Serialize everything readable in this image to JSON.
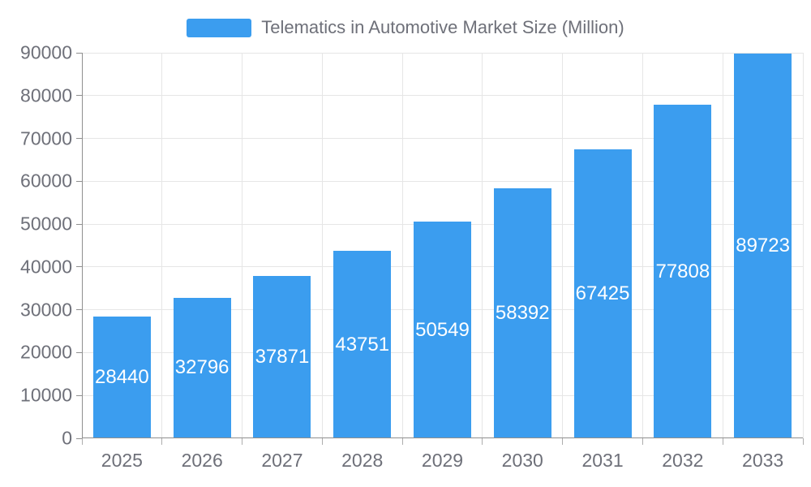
{
  "legend": {
    "label": "Telematics in Automotive Market Size (Million)"
  },
  "chart_data": {
    "type": "bar",
    "title": "Telematics in Automotive Market Size (Million)",
    "categories": [
      "2025",
      "2026",
      "2027",
      "2028",
      "2029",
      "2030",
      "2031",
      "2032",
      "2033"
    ],
    "series": [
      {
        "name": "Telematics in Automotive Market Size (Million)",
        "values": [
          28440,
          32796,
          37871,
          43751,
          50549,
          58392,
          67425,
          77808,
          89723
        ]
      }
    ],
    "xlabel": "",
    "ylabel": "",
    "ylim": [
      0,
      90000
    ],
    "yticks": [
      0,
      10000,
      20000,
      30000,
      40000,
      50000,
      60000,
      70000,
      80000,
      90000
    ],
    "grid": true,
    "legend_position": "top-center",
    "value_label_position": "inside-center",
    "colors": {
      "bar": "#3B9DEF",
      "value_label": "#FFFFFF",
      "grid": "#E6E6E6",
      "axis": "#8F8F8F",
      "text": "#6E7079",
      "background": "#FFFFFF"
    }
  }
}
